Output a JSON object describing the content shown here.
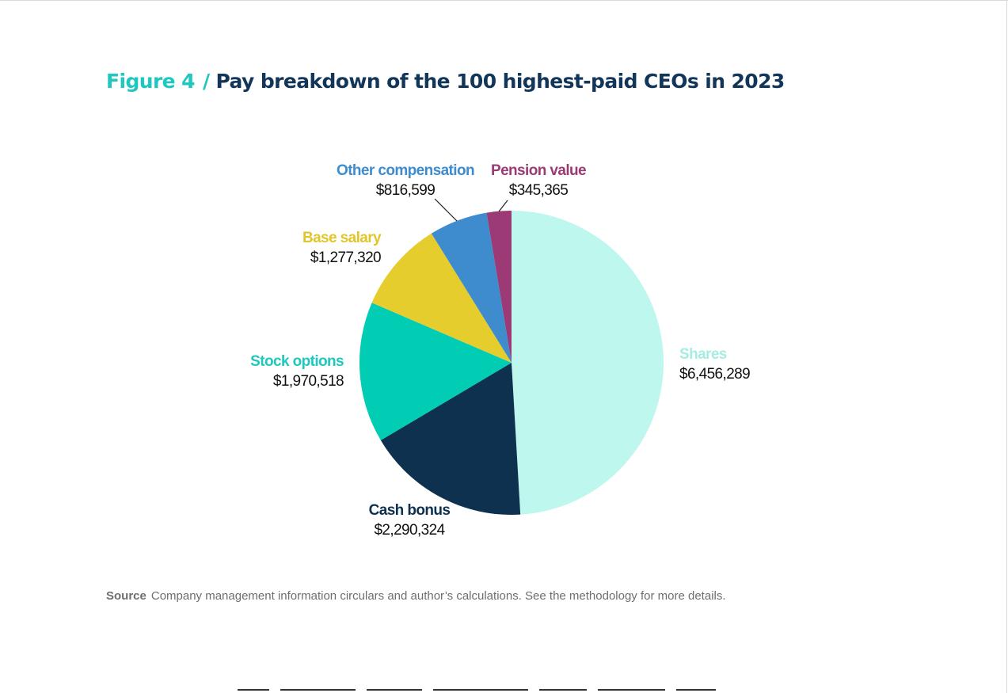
{
  "figure": {
    "label": "Figure 4",
    "separator": "/",
    "title": "Pay breakdown of the 100 highest-paid CEOs in 2023"
  },
  "chart_data": {
    "type": "pie",
    "title": "Pay breakdown of the 100 highest-paid CEOs in 2023",
    "slices": [
      {
        "name": "Shares",
        "value": 6456289,
        "value_label": "$6,456,289",
        "color": "#bdf7ee",
        "label_color": "#a7ece3"
      },
      {
        "name": "Cash bonus",
        "value": 2290324,
        "value_label": "$2,290,324",
        "color": "#0f3150",
        "label_color": "#0f3150"
      },
      {
        "name": "Stock options",
        "value": 1970518,
        "value_label": "$1,970,518",
        "color": "#00cdb4",
        "label_color": "#1ec8bf"
      },
      {
        "name": "Base salary",
        "value": 1277320,
        "value_label": "$1,277,320",
        "color": "#e6cd2e",
        "label_color": "#e2c52a"
      },
      {
        "name": "Other compensation",
        "value": 816599,
        "value_label": "$816,599",
        "color": "#3e8cce",
        "label_color": "#3e8cce"
      },
      {
        "name": "Pension value",
        "value": 345365,
        "value_label": "$345,365",
        "color": "#9b3a74",
        "label_color": "#9b3a74"
      }
    ]
  },
  "source": {
    "label": "Source",
    "text": "Company management information circulars and author’s calculations. See the methodology for more details."
  }
}
